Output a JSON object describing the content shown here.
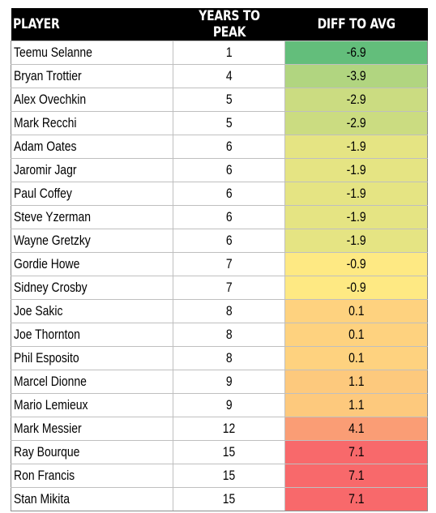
{
  "table": {
    "headers": {
      "player": "PLAYER",
      "years": "YEARS TO PEAK",
      "diff": "DIFF TO AVG"
    },
    "rows": [
      {
        "player": "Teemu Selanne",
        "years": "1",
        "diff": "-6.9",
        "color": "#63be7b"
      },
      {
        "player": "Bryan Trottier",
        "years": "4",
        "diff": "-3.9",
        "color": "#b1d580"
      },
      {
        "player": "Alex Ovechkin",
        "years": "5",
        "diff": "-2.9",
        "color": "#cbdc81"
      },
      {
        "player": "Mark Recchi",
        "years": "5",
        "diff": "-2.9",
        "color": "#cbdc81"
      },
      {
        "player": "Adam Oates",
        "years": "6",
        "diff": "-1.9",
        "color": "#e5e483"
      },
      {
        "player": "Jaromir Jagr",
        "years": "6",
        "diff": "-1.9",
        "color": "#e5e483"
      },
      {
        "player": "Paul Coffey",
        "years": "6",
        "diff": "-1.9",
        "color": "#e5e483"
      },
      {
        "player": "Steve Yzerman",
        "years": "6",
        "diff": "-1.9",
        "color": "#e5e483"
      },
      {
        "player": "Wayne Gretzky",
        "years": "6",
        "diff": "-1.9",
        "color": "#e5e483"
      },
      {
        "player": "Gordie Howe",
        "years": "7",
        "diff": "-0.9",
        "color": "#fee983"
      },
      {
        "player": "Sidney Crosby",
        "years": "7",
        "diff": "-0.9",
        "color": "#fee983"
      },
      {
        "player": "Joe Sakic",
        "years": "8",
        "diff": "0.1",
        "color": "#fed27f"
      },
      {
        "player": "Joe Thornton",
        "years": "8",
        "diff": "0.1",
        "color": "#fed27f"
      },
      {
        "player": "Phil Esposito",
        "years": "8",
        "diff": "0.1",
        "color": "#fed27f"
      },
      {
        "player": "Marcel Dionne",
        "years": "9",
        "diff": "1.1",
        "color": "#fdc97d"
      },
      {
        "player": "Mario Lemieux",
        "years": "9",
        "diff": "1.1",
        "color": "#fdc97d"
      },
      {
        "player": "Mark Messier",
        "years": "12",
        "diff": "4.1",
        "color": "#fa9d75"
      },
      {
        "player": "Ray Bourque",
        "years": "15",
        "diff": "7.1",
        "color": "#f8696b"
      },
      {
        "player": "Ron Francis",
        "years": "15",
        "diff": "7.1",
        "color": "#f8696b"
      },
      {
        "player": "Stan Mikita",
        "years": "15",
        "diff": "7.1",
        "color": "#f8696b"
      }
    ]
  }
}
